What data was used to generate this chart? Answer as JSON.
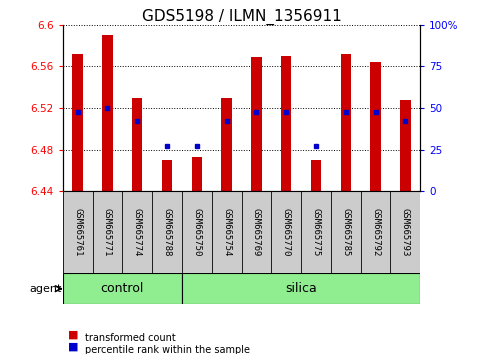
{
  "title": "GDS5198 / ILMN_1356911",
  "samples": [
    "GSM665761",
    "GSM665771",
    "GSM665774",
    "GSM665788",
    "GSM665750",
    "GSM665754",
    "GSM665769",
    "GSM665770",
    "GSM665775",
    "GSM665785",
    "GSM665792",
    "GSM665793"
  ],
  "n_control": 4,
  "transformed_values": [
    6.572,
    6.59,
    6.53,
    6.47,
    6.473,
    6.53,
    6.569,
    6.57,
    6.47,
    6.572,
    6.564,
    6.528
  ],
  "percentile_values": [
    6.516,
    6.52,
    6.508,
    6.484,
    6.484,
    6.508,
    6.516,
    6.516,
    6.484,
    6.516,
    6.516,
    6.508
  ],
  "bar_bottom": 6.44,
  "ylim_left": [
    6.44,
    6.6
  ],
  "ylim_right": [
    0,
    100
  ],
  "yticks_left": [
    6.44,
    6.48,
    6.52,
    6.56,
    6.6
  ],
  "yticks_right": [
    0,
    25,
    50,
    75,
    100
  ],
  "ytick_labels_left": [
    "6.44",
    "6.48",
    "6.52",
    "6.56",
    "6.6"
  ],
  "ytick_labels_right": [
    "0",
    "25",
    "50",
    "75",
    "100%"
  ],
  "bar_color": "#cc0000",
  "dot_color": "#0000cc",
  "group_color": "#90ee90",
  "xtick_bg_color": "#cccccc",
  "title_fontsize": 11,
  "tick_fontsize": 7.5,
  "group_fontsize": 9,
  "agent_label": "agent",
  "legend_items": [
    "transformed count",
    "percentile rank within the sample"
  ],
  "bar_width": 0.35
}
